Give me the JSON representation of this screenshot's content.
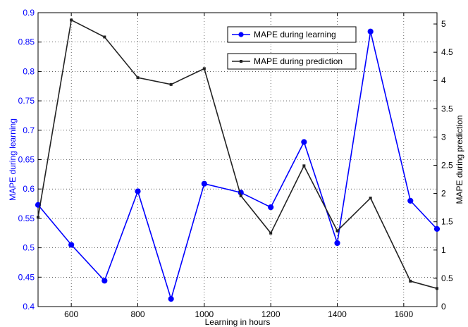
{
  "chart_data": {
    "type": "line",
    "xlabel": "Learning in hours",
    "ylabel_left": "MAPE during learning",
    "ylabel_right": "MAPE during prediction",
    "xlim": [
      500,
      1700
    ],
    "ylim_left": [
      0.4,
      0.9
    ],
    "ylim_right": [
      0,
      5.2
    ],
    "x_ticks": [
      "600",
      "800",
      "1000",
      "1200",
      "1400",
      "1600"
    ],
    "y_left_ticks": [
      "0.4",
      "0.45",
      "0.5",
      "0.55",
      "0.6",
      "0.65",
      "0.7",
      "0.75",
      "0.8",
      "0.85",
      "0.9"
    ],
    "y_right_ticks": [
      "0",
      "0.5",
      "1",
      "1.5",
      "2",
      "2.5",
      "3",
      "3.5",
      "4",
      "4.5",
      "5"
    ],
    "grid": true,
    "legend_placement": "top-right",
    "series": [
      {
        "name": "MAPE during learning",
        "axis": "left",
        "color": "#0000ff",
        "marker": "circle",
        "x": [
          500,
          600,
          700,
          800,
          900,
          1000,
          1110,
          1200,
          1300,
          1400,
          1500,
          1620,
          1700
        ],
        "values": [
          0.573,
          0.505,
          0.444,
          0.596,
          0.413,
          0.609,
          0.594,
          0.569,
          0.68,
          0.508,
          0.868,
          0.58,
          0.532
        ]
      },
      {
        "name": "MAPE during prediction",
        "axis": "right",
        "color": "#222222",
        "marker": "square",
        "x": [
          500,
          600,
          700,
          800,
          900,
          1000,
          1110,
          1200,
          1300,
          1400,
          1500,
          1620,
          1700
        ],
        "values": [
          1.58,
          5.07,
          4.77,
          4.05,
          3.93,
          4.21,
          1.96,
          1.3,
          2.49,
          1.34,
          1.92,
          0.45,
          0.32
        ]
      }
    ]
  }
}
